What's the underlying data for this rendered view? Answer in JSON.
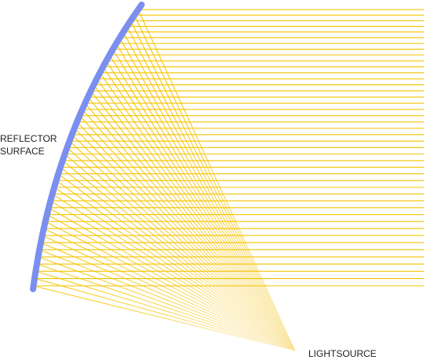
{
  "reflector_label": {
    "lines": [
      "REFLECTOR",
      "SURFACE"
    ]
  },
  "lightsource_label": "LIGHTSOURCE"
}
